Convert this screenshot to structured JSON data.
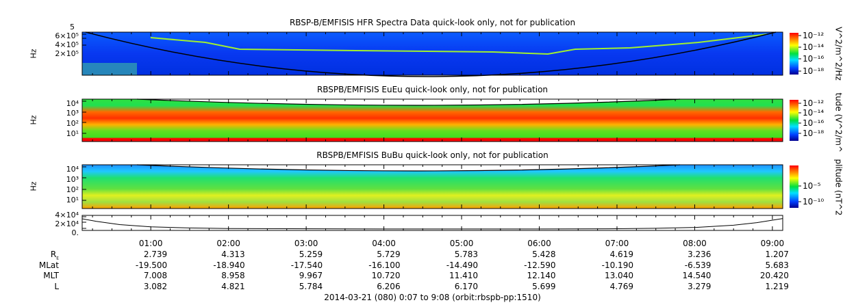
{
  "chart_data": [
    {
      "type": "heatmap",
      "title": "RBSP-B/EMFISIS  HFR Spectra Data quick-look only, not for publication",
      "ylabel": "Hz",
      "yticks": [
        "6×10⁵",
        "4×10⁵",
        "2×10⁵"
      ],
      "ytick_top": "5",
      "colorbar_label": "V^2/m^2/Hz",
      "colorbar_ticks": [
        "10⁻¹²",
        "10⁻¹⁴",
        "10⁻¹⁶",
        "10⁻¹⁸"
      ]
    },
    {
      "type": "heatmap",
      "title": "RBSPB/EMFISIS  EuEu quick-look only, not for publication",
      "ylabel": "Hz",
      "yticks": [
        "10⁴",
        "10³",
        "10²",
        "10¹"
      ],
      "colorbar_label": "tude (V^2/m^",
      "colorbar_ticks": [
        "10⁻¹²",
        "10⁻¹⁴",
        "10⁻¹⁶",
        "10⁻¹⁸"
      ]
    },
    {
      "type": "heatmap",
      "title": "RBSPB/EMFISIS  BuBu quick-look only, not for publication",
      "ylabel": "Hz",
      "yticks": [
        "10⁴",
        "10³",
        "10²",
        "10¹"
      ],
      "colorbar_label": "plitude (nT^2",
      "colorbar_ticks": [
        "10⁻⁵",
        "10⁻¹⁰"
      ]
    },
    {
      "type": "line",
      "yticks": [
        "4×10⁴",
        "2×10⁴",
        "0."
      ],
      "ylim": [
        0,
        40000
      ],
      "x_hours": [
        0.117,
        0.3,
        0.6,
        1.0,
        1.5,
        2.0,
        4.0,
        6.0,
        7.0,
        7.5,
        8.0,
        8.5,
        8.8,
        9.133
      ],
      "y": [
        32000,
        24000,
        14000,
        7000,
        3500,
        1500,
        300,
        300,
        1000,
        2500,
        5000,
        12000,
        20000,
        33000
      ]
    }
  ],
  "time_axis": {
    "start_hours": 0.117,
    "end_hours": 9.133,
    "labels": [
      "01:00",
      "02:00",
      "03:00",
      "04:00",
      "05:00",
      "06:00",
      "07:00",
      "08:00",
      "09:00"
    ]
  },
  "ephemeris": {
    "rows": [
      {
        "label": "R",
        "sub": "E",
        "values": [
          "2.739",
          "4.313",
          "5.259",
          "5.729",
          "5.783",
          "5.428",
          "4.619",
          "3.236",
          "1.207"
        ]
      },
      {
        "label": "MLat",
        "values": [
          "-19.500",
          "-18.940",
          "-17.540",
          "-16.100",
          "-14.490",
          "-12.590",
          "-10.190",
          "-6.539",
          "5.683"
        ]
      },
      {
        "label": "MLT",
        "values": [
          "7.008",
          "8.958",
          "9.967",
          "10.720",
          "11.410",
          "12.140",
          "13.040",
          "14.540",
          "20.420"
        ]
      },
      {
        "label": "L",
        "values": [
          "3.082",
          "4.821",
          "5.784",
          "6.206",
          "6.170",
          "5.699",
          "4.769",
          "3.279",
          "1.219"
        ]
      }
    ]
  },
  "footer": "2014-03-21 (080) 0:07 to 9:08 (orbit:rbspb-pp:1510)"
}
